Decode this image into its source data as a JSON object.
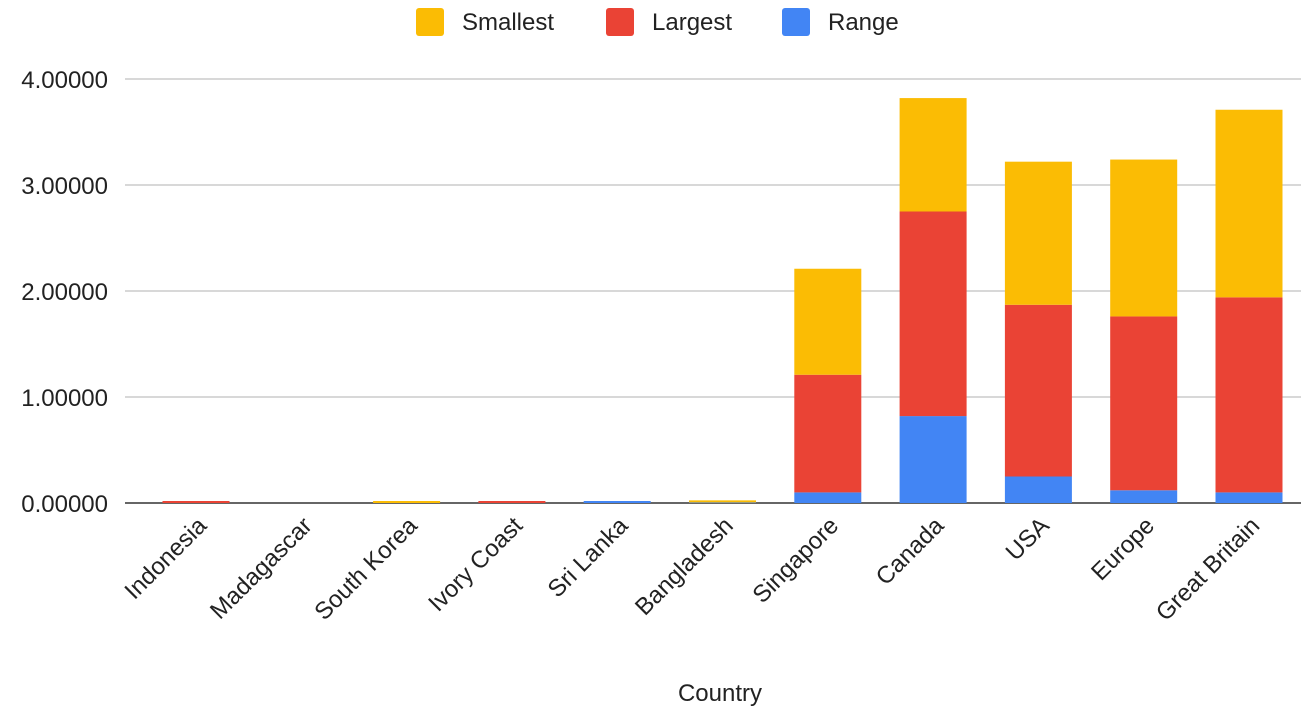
{
  "chart_data": {
    "type": "bar",
    "stacked": true,
    "title": "",
    "xlabel": "Country",
    "ylabel": "",
    "ylim": [
      0,
      4
    ],
    "grid": true,
    "legend_position": "top-center",
    "categories": [
      "Indonesia",
      "Madagascar",
      "South Korea",
      "Ivory Coast",
      "Sri Lanka",
      "Bangladesh",
      "Singapore",
      "Canada",
      "USA",
      "Europe",
      "Great Britain"
    ],
    "y_ticks": [
      "0.00000",
      "1.00000",
      "2.00000",
      "3.00000",
      "4.00000"
    ],
    "series": [
      {
        "name": "Range",
        "color": "#4285F4",
        "values": [
          0.0,
          0.0,
          0.0,
          0.0,
          0.005,
          0.005,
          0.1,
          0.82,
          0.25,
          0.12,
          0.1
        ]
      },
      {
        "name": "Largest",
        "color": "#EA4335",
        "values": [
          0.005,
          0.0,
          0.0,
          0.005,
          0.0,
          0.0,
          1.11,
          1.93,
          1.62,
          1.64,
          1.84
        ]
      },
      {
        "name": "Smallest",
        "color": "#FBBC04",
        "values": [
          0.0,
          0.0,
          0.005,
          0.0,
          0.0,
          0.02,
          1.0,
          1.07,
          1.35,
          1.48,
          1.77
        ]
      }
    ],
    "legend_order": [
      "Smallest",
      "Largest",
      "Range"
    ]
  }
}
